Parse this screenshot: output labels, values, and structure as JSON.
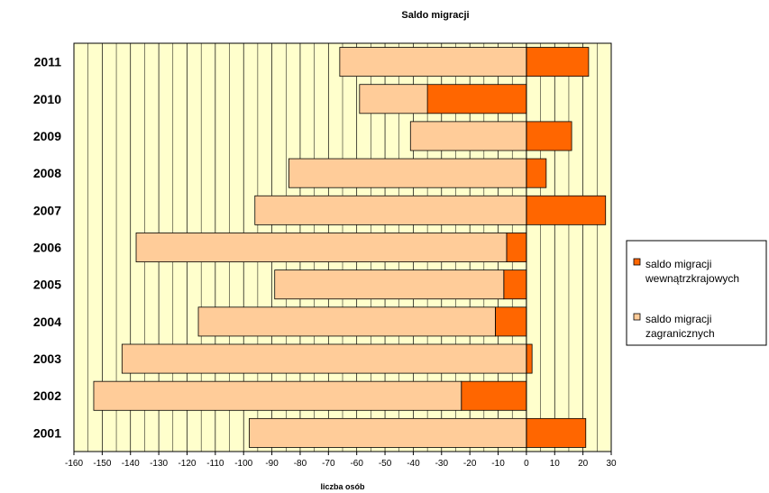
{
  "chart_data": {
    "type": "bar",
    "orientation": "horizontal",
    "stacked": true,
    "title": "Saldo migracji",
    "xlabel": "liczba osób",
    "ylabel": "",
    "xlim": [
      -160,
      30
    ],
    "x_ticks": [
      -160,
      -150,
      -140,
      -130,
      -120,
      -110,
      -100,
      -90,
      -80,
      -70,
      -60,
      -50,
      -40,
      -30,
      -20,
      -10,
      0,
      10,
      20,
      30
    ],
    "grid": true,
    "plot_background": "#ffffcc",
    "legend_position": "right",
    "categories": [
      "2011",
      "2010",
      "2009",
      "2008",
      "2007",
      "2006",
      "2005",
      "2004",
      "2003",
      "2002",
      "2001"
    ],
    "series": [
      {
        "name": "saldo migracji wewnątrzkrajowych",
        "color": "#ff6600",
        "values": [
          22,
          -35,
          16,
          7,
          28,
          -7,
          -8,
          -11,
          2,
          -23,
          21
        ]
      },
      {
        "name": "saldo migracji zagranicznych",
        "color": "#ffcc99",
        "values": [
          -66,
          -24,
          -41,
          -84,
          -96,
          -131,
          -81,
          -105,
          -143,
          -130,
          -98
        ]
      }
    ],
    "legend": [
      {
        "line1": "saldo migracji",
        "line2": "wewnątrzkrajowych"
      },
      {
        "line1": "saldo migracji",
        "line2": "zagranicznych"
      }
    ]
  }
}
